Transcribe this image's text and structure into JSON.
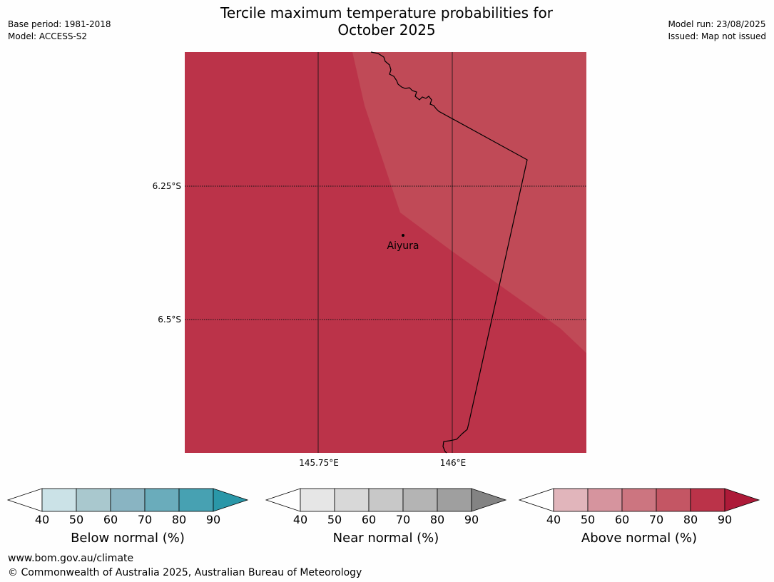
{
  "title_line1": "Tercile maximum temperature probabilities for",
  "title_line2": "October 2025",
  "meta_left": {
    "base_period": "Base period: 1981-2018",
    "model": "Model: ACCESS-S2"
  },
  "meta_right": {
    "model_run": "Model run: 23/08/2025",
    "issued": "Issued: Map not issued"
  },
  "map": {
    "lat_labels": [
      "6.25°S",
      "6.5°S"
    ],
    "lon_labels": [
      "145.75°E",
      "146°E"
    ],
    "place": "Aiyura",
    "colors": {
      "main": "#bb3349",
      "lighter": "#c04a57",
      "border": "#000000"
    }
  },
  "colorbars": [
    {
      "name": "below",
      "label": "Below normal (%)",
      "ticks": [
        "40",
        "50",
        "60",
        "70",
        "80",
        "90"
      ],
      "colors": [
        "#cbe2e7",
        "#a9c8ce",
        "#89b4c2",
        "#6aacbb",
        "#47a1b2",
        "#2a97a8"
      ]
    },
    {
      "name": "near",
      "label": "Near normal (%)",
      "ticks": [
        "40",
        "50",
        "60",
        "70",
        "80",
        "90"
      ],
      "colors": [
        "#e6e6e6",
        "#d8d8d8",
        "#c8c8c8",
        "#b4b4b4",
        "#9f9f9f",
        "#838383"
      ]
    },
    {
      "name": "above",
      "label": "Above normal (%)",
      "ticks": [
        "40",
        "50",
        "60",
        "70",
        "80",
        "90"
      ],
      "colors": [
        "#e1b5bb",
        "#d6949e",
        "#cc7580",
        "#c45664",
        "#bb3349",
        "#ad1a38"
      ]
    }
  ],
  "footer": {
    "url": "www.bom.gov.au/climate",
    "copyright": "© Commonwealth of Australia 2025, Australian Bureau of Meteorology"
  }
}
